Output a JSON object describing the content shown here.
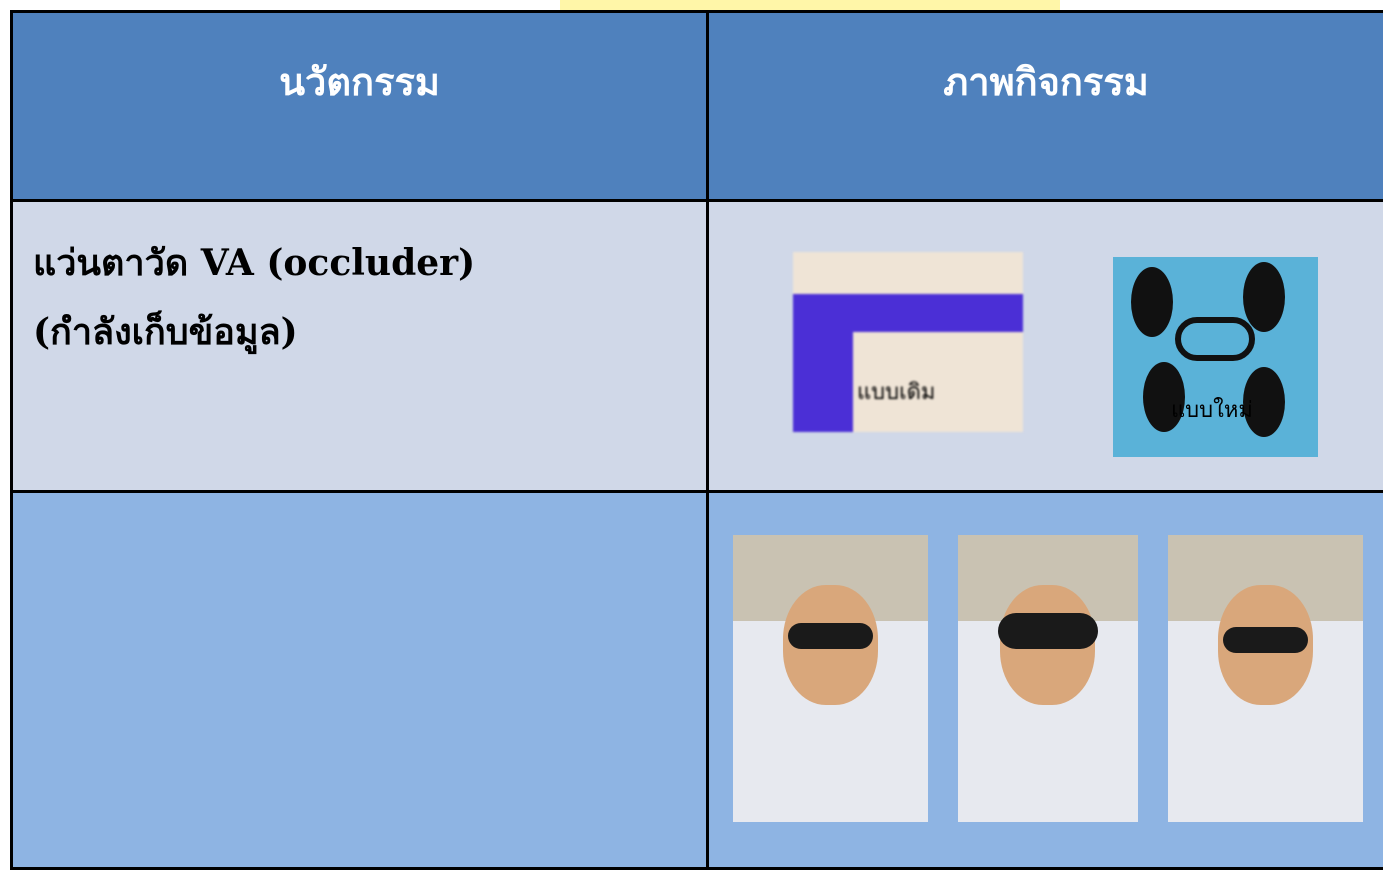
{
  "table": {
    "header": [
      "นวัตกรรม",
      "ภาพกิจกรรม"
    ],
    "rows": [
      [
        "แว่นตาวัด VA  (occluder)",
        "(กำลังเก็บข้อมูล)"
      ]
    ],
    "captions": [
      "แบบเดิม",
      "แบบใหม่"
    ]
  }
}
